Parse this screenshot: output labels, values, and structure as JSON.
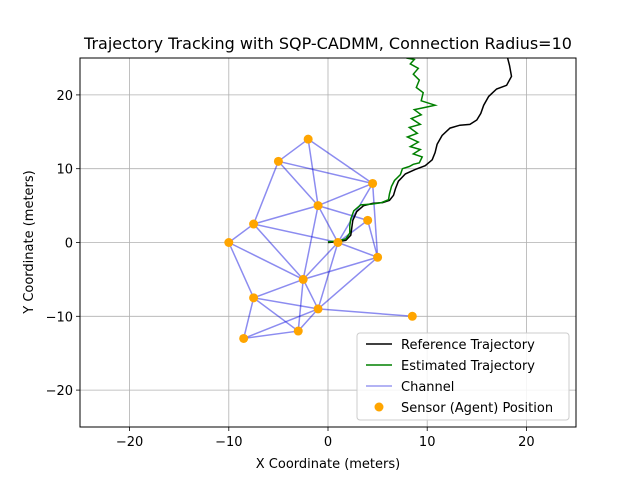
{
  "chart_data": {
    "type": "line",
    "title": "Trajectory Tracking with SQP-CADMM, Connection Radius=10",
    "xlabel": "X Coordinate (meters)",
    "ylabel": "Y Coordinate (meters)",
    "xlim": [
      -25,
      25
    ],
    "ylim": [
      -25,
      25
    ],
    "x_ticks": [
      -20,
      -10,
      0,
      10,
      20
    ],
    "y_ticks": [
      -20,
      -10,
      0,
      10,
      20
    ],
    "x_tick_labels": [
      "−20",
      "−10",
      "0",
      "10",
      "20"
    ],
    "y_tick_labels": [
      "−20",
      "−10",
      "0",
      "10",
      "20"
    ],
    "grid": true,
    "legend_position": "lower-right",
    "colors": {
      "reference": "#000000",
      "estimated": "#008000",
      "channel": "#0000dd",
      "sensor": "#ffa500"
    },
    "legend": [
      {
        "label": "Reference Trajectory",
        "kind": "line",
        "color": "#000000"
      },
      {
        "label": "Estimated Trajectory",
        "kind": "line",
        "color": "#008000"
      },
      {
        "label": "Channel",
        "kind": "line",
        "color": "#9a9af0"
      },
      {
        "label": "Sensor (Agent) Position",
        "kind": "marker",
        "color": "#ffa500"
      }
    ],
    "reference_trajectory": [
      [
        0.0,
        0.0
      ],
      [
        1.0,
        0.1
      ],
      [
        1.8,
        0.3
      ],
      [
        2.3,
        1.0
      ],
      [
        2.4,
        2.0
      ],
      [
        2.5,
        3.0
      ],
      [
        2.9,
        4.2
      ],
      [
        3.6,
        5.0
      ],
      [
        4.5,
        5.3
      ],
      [
        5.5,
        5.4
      ],
      [
        6.2,
        5.7
      ],
      [
        6.6,
        6.4
      ],
      [
        6.8,
        7.3
      ],
      [
        7.1,
        8.3
      ],
      [
        7.8,
        9.3
      ],
      [
        8.8,
        9.9
      ],
      [
        9.8,
        10.4
      ],
      [
        10.5,
        11.2
      ],
      [
        10.8,
        12.2
      ],
      [
        11.0,
        13.3
      ],
      [
        11.5,
        14.5
      ],
      [
        12.3,
        15.5
      ],
      [
        13.3,
        15.9
      ],
      [
        14.3,
        16.0
      ],
      [
        15.0,
        16.6
      ],
      [
        15.4,
        17.5
      ],
      [
        15.7,
        18.6
      ],
      [
        16.2,
        19.8
      ],
      [
        17.0,
        20.8
      ],
      [
        18.0,
        21.3
      ],
      [
        18.5,
        22.5
      ],
      [
        18.3,
        24.0
      ],
      [
        18.1,
        25.0
      ]
    ],
    "estimated_trajectory": [
      [
        0.0,
        0.1
      ],
      [
        1.0,
        0.2
      ],
      [
        1.8,
        0.5
      ],
      [
        2.2,
        1.3
      ],
      [
        2.2,
        2.3
      ],
      [
        2.3,
        3.2
      ],
      [
        2.6,
        4.3
      ],
      [
        3.3,
        5.1
      ],
      [
        4.4,
        5.2
      ],
      [
        5.4,
        5.4
      ],
      [
        6.1,
        5.8
      ],
      [
        6.2,
        6.6
      ],
      [
        6.4,
        7.6
      ],
      [
        6.7,
        8.4
      ],
      [
        7.3,
        9.2
      ],
      [
        7.5,
        10.0
      ],
      [
        8.2,
        10.3
      ],
      [
        8.6,
        10.6
      ],
      [
        9.2,
        10.8
      ],
      [
        9.5,
        11.6
      ],
      [
        8.6,
        12.0
      ],
      [
        9.3,
        12.6
      ],
      [
        8.3,
        13.0
      ],
      [
        9.1,
        13.6
      ],
      [
        8.0,
        14.3
      ],
      [
        9.0,
        14.8
      ],
      [
        8.2,
        15.6
      ],
      [
        9.3,
        16.0
      ],
      [
        8.4,
        16.8
      ],
      [
        9.4,
        17.3
      ],
      [
        8.7,
        18.0
      ],
      [
        9.8,
        18.3
      ],
      [
        10.8,
        18.6
      ],
      [
        9.4,
        19.2
      ],
      [
        9.6,
        20.3
      ],
      [
        8.9,
        21.0
      ],
      [
        9.2,
        22.0
      ],
      [
        8.6,
        22.8
      ],
      [
        9.1,
        23.6
      ],
      [
        8.3,
        24.2
      ],
      [
        8.7,
        24.8
      ],
      [
        7.9,
        25.0
      ]
    ],
    "sensors": [
      [
        -2.0,
        14.0
      ],
      [
        -5.0,
        11.0
      ],
      [
        4.5,
        8.0
      ],
      [
        -1.0,
        5.0
      ],
      [
        4.0,
        3.0
      ],
      [
        -7.5,
        2.5
      ],
      [
        -10.0,
        0.0
      ],
      [
        1.0,
        0.0
      ],
      [
        5.0,
        -2.0
      ],
      [
        -2.5,
        -5.0
      ],
      [
        -7.5,
        -7.5
      ],
      [
        -1.0,
        -9.0
      ],
      [
        8.5,
        -10.0
      ],
      [
        -3.0,
        -12.0
      ],
      [
        -8.5,
        -13.0
      ]
    ],
    "channels": [
      [
        0,
        1
      ],
      [
        0,
        2
      ],
      [
        0,
        3
      ],
      [
        1,
        2
      ],
      [
        1,
        3
      ],
      [
        1,
        5
      ],
      [
        2,
        3
      ],
      [
        2,
        7
      ],
      [
        2,
        8
      ],
      [
        3,
        4
      ],
      [
        3,
        5
      ],
      [
        3,
        7
      ],
      [
        3,
        9
      ],
      [
        4,
        7
      ],
      [
        4,
        8
      ],
      [
        5,
        6
      ],
      [
        5,
        7
      ],
      [
        5,
        9
      ],
      [
        6,
        9
      ],
      [
        6,
        10
      ],
      [
        7,
        8
      ],
      [
        7,
        9
      ],
      [
        7,
        11
      ],
      [
        8,
        9
      ],
      [
        8,
        11
      ],
      [
        9,
        10
      ],
      [
        9,
        11
      ],
      [
        9,
        13
      ],
      [
        10,
        11
      ],
      [
        10,
        13
      ],
      [
        11,
        12
      ],
      [
        11,
        13
      ],
      [
        13,
        14
      ],
      [
        11,
        14
      ],
      [
        10,
        14
      ]
    ]
  }
}
